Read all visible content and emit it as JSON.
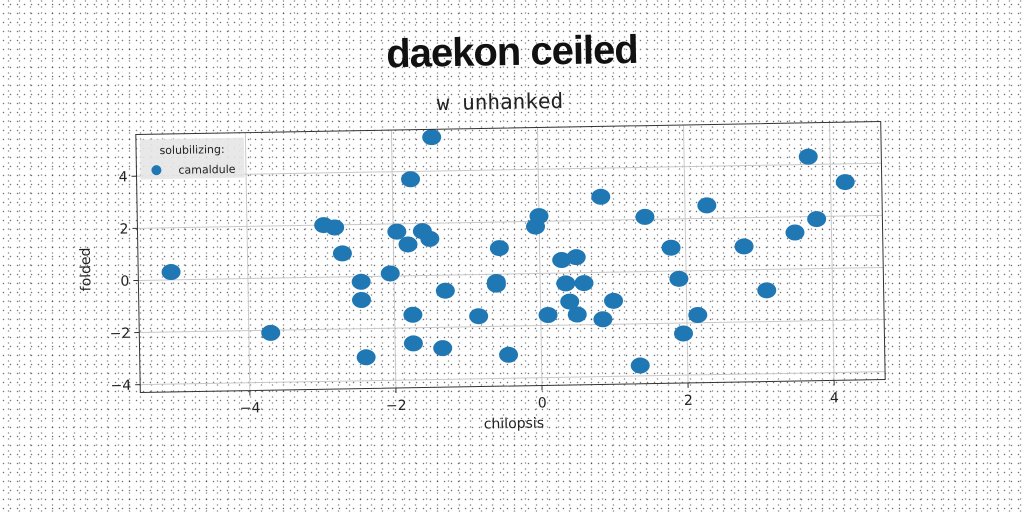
{
  "title": "daekon ceiled",
  "subtitle": "w unhanked",
  "colors": {
    "marker": "#1f77b4",
    "grid": "#c8c8c8",
    "frame": "#333333",
    "legend_bg": "#e6e6e6"
  },
  "chart_data": {
    "type": "scatter",
    "title": "daekon ceiled",
    "subtitle": "w unhanked",
    "xlabel": "chilopsis",
    "ylabel": "folded",
    "xlim": [
      -5.5,
      4.7
    ],
    "ylim": [
      -4.3,
      5.6
    ],
    "xticks": [
      -4,
      -2,
      0,
      2,
      4
    ],
    "yticks": [
      -4,
      -2,
      0,
      2,
      4
    ],
    "xtick_labels": [
      "−4",
      "−2",
      "0",
      "2",
      "4"
    ],
    "ytick_labels": [
      "−4",
      "−2",
      "0",
      "2",
      "4"
    ],
    "grid": true,
    "legend": {
      "title": "solubilizing:",
      "placement": "top-left"
    },
    "series": [
      {
        "name": "camaldule",
        "color": "#1f77b4",
        "x": [
          -5.05,
          -3.7,
          -2.95,
          -2.8,
          -2.7,
          -2.45,
          -2.45,
          -2.4,
          -2.05,
          -1.95,
          -1.8,
          -1.75,
          -1.75,
          -1.75,
          -1.6,
          -1.45,
          -1.5,
          -1.35,
          -1.3,
          -0.85,
          -0.6,
          -0.6,
          -0.55,
          -0.45,
          -0.05,
          0.0,
          0.1,
          0.3,
          0.35,
          0.4,
          0.5,
          0.5,
          0.6,
          0.85,
          0.85,
          1.0,
          1.35,
          1.45,
          1.8,
          1.9,
          1.95,
          2.15,
          2.3,
          2.8,
          3.1,
          3.5,
          3.7,
          3.8,
          4.2
        ],
        "y": [
          0.3,
          -2.1,
          2.0,
          1.9,
          0.9,
          -0.2,
          -0.9,
          -3.1,
          0.1,
          1.7,
          1.2,
          3.7,
          -1.5,
          -2.6,
          1.7,
          5.3,
          1.4,
          -2.8,
          -0.6,
          -1.6,
          -0.3,
          -0.4,
          1.0,
          -3.1,
          1.8,
          2.2,
          -1.6,
          0.5,
          -0.4,
          -1.1,
          0.6,
          -1.6,
          -0.4,
          2.9,
          -1.8,
          -1.1,
          -3.6,
          2.1,
          0.9,
          -0.3,
          -2.4,
          -1.7,
          2.5,
          0.9,
          -0.8,
          1.4,
          4.3,
          1.9,
          3.3
        ]
      }
    ]
  }
}
